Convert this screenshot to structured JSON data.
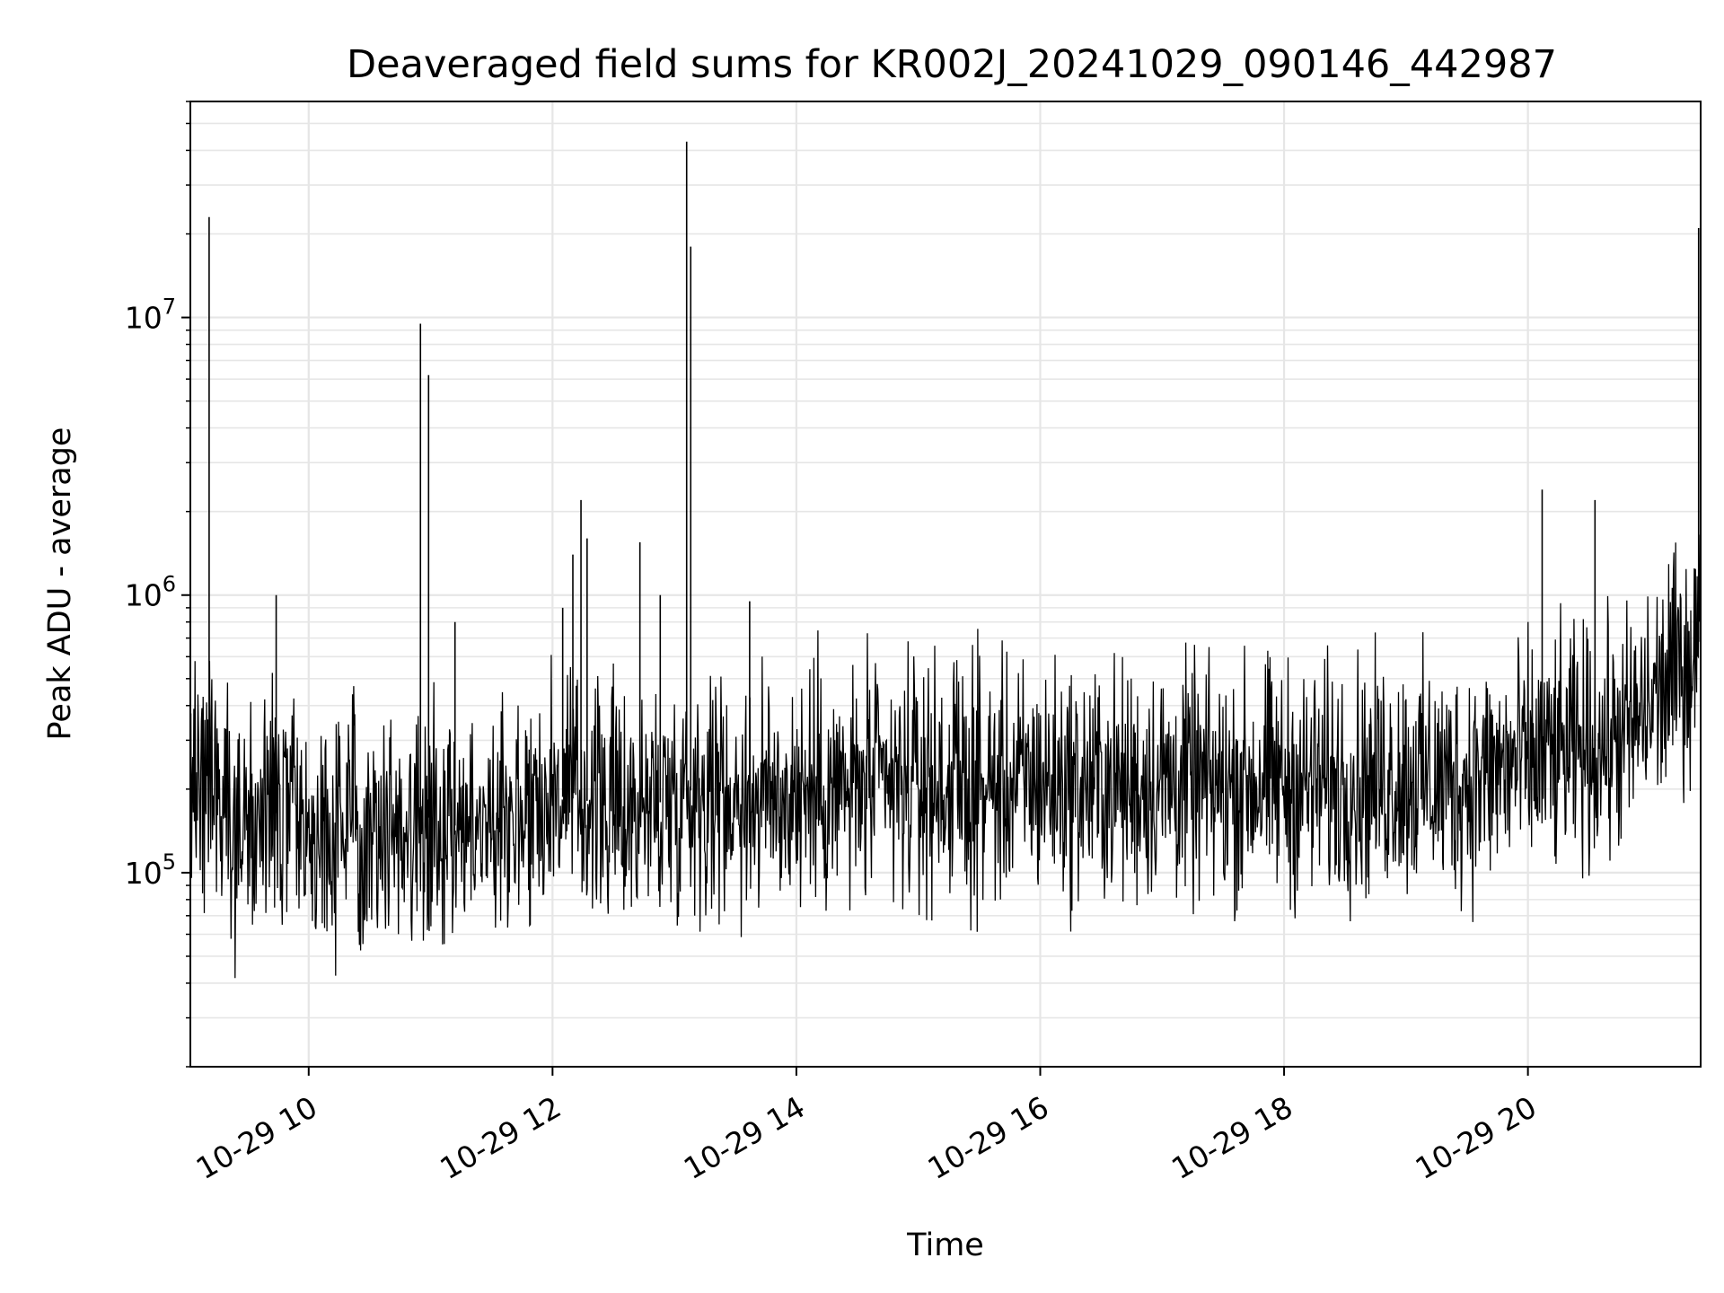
{
  "chart_data": {
    "type": "line",
    "title": "Deaveraged field sums for KR002J_20241029_090146_442987",
    "xlabel": "Time",
    "ylabel": "Peak ADU - average",
    "x_type": "datetime",
    "x_start": "2024-10-29 09:01:46",
    "xlim": [
      "2024-10-29 09:01:46",
      "2024-10-29 21:25:00"
    ],
    "ylim": [
      20000,
      60000000
    ],
    "yscale": "log",
    "x_ticks": [
      {
        "value": "2024-10-29 10:00",
        "label": "10-29 10"
      },
      {
        "value": "2024-10-29 12:00",
        "label": "10-29 12"
      },
      {
        "value": "2024-10-29 14:00",
        "label": "10-29 14"
      },
      {
        "value": "2024-10-29 16:00",
        "label": "10-29 16"
      },
      {
        "value": "2024-10-29 18:00",
        "label": "10-29 18"
      },
      {
        "value": "2024-10-29 20:00",
        "label": "10-29 20"
      }
    ],
    "y_ticks": [
      {
        "value": 100000,
        "base": "10",
        "exp": "5"
      },
      {
        "value": 1000000,
        "base": "10",
        "exp": "6"
      },
      {
        "value": 10000000,
        "base": "10",
        "exp": "7"
      }
    ],
    "grid": true,
    "color": "#000000",
    "series": [
      {
        "x": [
          "2024-10-29 09:01:46",
          "2024-10-29 09:10",
          "2024-10-29 09:20",
          "2024-10-29 09:30",
          "2024-10-29 09:40",
          "2024-10-29 09:50",
          "2024-10-29 10:00",
          "2024-10-29 10:10",
          "2024-10-29 10:20",
          "2024-10-29 10:30",
          "2024-10-29 10:40",
          "2024-10-29 10:50",
          "2024-10-29 11:00",
          "2024-10-29 11:10",
          "2024-10-29 11:20",
          "2024-10-29 11:30",
          "2024-10-29 11:40",
          "2024-10-29 11:50",
          "2024-10-29 12:00",
          "2024-10-29 12:10",
          "2024-10-29 12:20",
          "2024-10-29 12:30",
          "2024-10-29 12:40",
          "2024-10-29 12:50",
          "2024-10-29 13:00",
          "2024-10-29 13:10",
          "2024-10-29 13:20",
          "2024-10-29 13:30",
          "2024-10-29 13:40",
          "2024-10-29 13:50",
          "2024-10-29 14:00",
          "2024-10-29 14:10",
          "2024-10-29 14:20",
          "2024-10-29 14:30",
          "2024-10-29 14:40",
          "2024-10-29 14:50",
          "2024-10-29 15:00",
          "2024-10-29 15:10",
          "2024-10-29 15:20",
          "2024-10-29 15:30",
          "2024-10-29 15:40",
          "2024-10-29 15:50",
          "2024-10-29 16:00",
          "2024-10-29 16:10",
          "2024-10-29 16:20",
          "2024-10-29 16:30",
          "2024-10-29 16:40",
          "2024-10-29 16:50",
          "2024-10-29 17:00",
          "2024-10-29 17:10",
          "2024-10-29 17:20",
          "2024-10-29 17:30",
          "2024-10-29 17:40",
          "2024-10-29 17:50",
          "2024-10-29 18:00",
          "2024-10-29 18:10",
          "2024-10-29 18:20",
          "2024-10-29 18:30",
          "2024-10-29 18:40",
          "2024-10-29 18:50",
          "2024-10-29 19:00",
          "2024-10-29 19:10",
          "2024-10-29 19:20",
          "2024-10-29 19:30",
          "2024-10-29 19:40",
          "2024-10-29 19:50",
          "2024-10-29 20:00",
          "2024-10-29 20:10",
          "2024-10-29 20:20",
          "2024-10-29 20:30",
          "2024-10-29 20:40",
          "2024-10-29 20:50",
          "2024-10-29 21:00",
          "2024-10-29 21:10",
          "2024-10-29 21:20",
          "2024-10-29 21:25"
        ],
        "y": [
          200000,
          250000,
          180000,
          140000,
          160000,
          170000,
          130000,
          140000,
          150000,
          160000,
          150000,
          140000,
          160000,
          150000,
          140000,
          160000,
          170000,
          180000,
          190000,
          185000,
          180000,
          175000,
          170000,
          175000,
          190000,
          200000,
          195000,
          190000,
          185000,
          190000,
          195000,
          200000,
          195000,
          200000,
          205000,
          200000,
          210000,
          205000,
          210000,
          200000,
          205000,
          210000,
          215000,
          210000,
          205000,
          210000,
          205000,
          210000,
          215000,
          210000,
          205000,
          200000,
          210000,
          215000,
          210000,
          205000,
          210000,
          215000,
          210000,
          220000,
          225000,
          215000,
          210000,
          215000,
          225000,
          240000,
          250000,
          260000,
          270000,
          280000,
          300000,
          320000,
          400000,
          500000,
          600000,
          700000
        ]
      }
    ],
    "spikes": [
      {
        "x": "2024-10-29 09:11",
        "y": 23000000
      },
      {
        "x": "2024-10-29 09:44",
        "y": 1000000
      },
      {
        "x": "2024-10-29 10:55",
        "y": 9500000
      },
      {
        "x": "2024-10-29 10:59",
        "y": 6200000
      },
      {
        "x": "2024-10-29 11:12",
        "y": 800000
      },
      {
        "x": "2024-10-29 12:05",
        "y": 900000
      },
      {
        "x": "2024-10-29 12:10",
        "y": 1400000
      },
      {
        "x": "2024-10-29 12:14",
        "y": 2200000
      },
      {
        "x": "2024-10-29 12:17",
        "y": 1600000
      },
      {
        "x": "2024-10-29 12:43",
        "y": 1550000
      },
      {
        "x": "2024-10-29 12:53",
        "y": 1000000
      },
      {
        "x": "2024-10-29 13:06",
        "y": 43000000
      },
      {
        "x": "2024-10-29 13:08",
        "y": 18000000
      },
      {
        "x": "2024-10-29 13:37",
        "y": 950000
      },
      {
        "x": "2024-10-29 20:07",
        "y": 2400000
      },
      {
        "x": "2024-10-29 20:33",
        "y": 2200000
      },
      {
        "x": "2024-10-29 21:24",
        "y": 21000000
      }
    ]
  }
}
